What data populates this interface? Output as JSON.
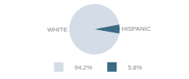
{
  "chart_data": {
    "type": "pie",
    "categories": [
      "WHITE",
      "HISPANIC"
    ],
    "values": [
      94.2,
      5.8
    ],
    "value_labels": [
      "94.2%",
      "5.8%"
    ],
    "colors": [
      "#d4dce8",
      "#3a6b85"
    ],
    "legend": "bottom"
  }
}
